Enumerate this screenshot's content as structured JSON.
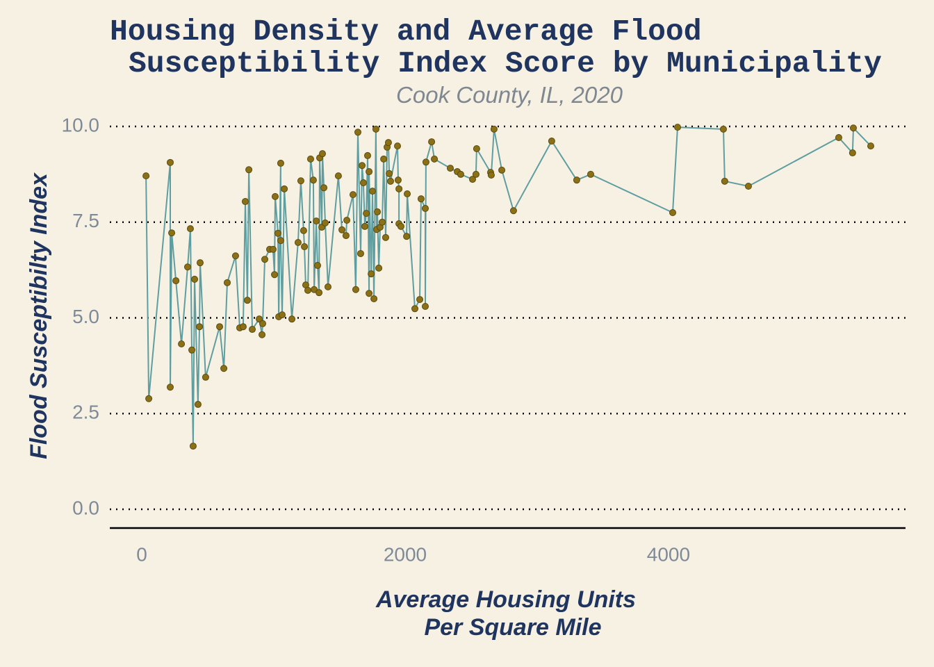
{
  "chart_data": {
    "type": "line",
    "title": [
      "Housing Density and Average Flood",
      "Susceptibility Index Score by Municipality"
    ],
    "subtitle": "Cook County, IL, 2020",
    "x_label": [
      "Average Housing Units",
      "Per Square Mile"
    ],
    "y_label": "Flood Susceptibilty Index",
    "line_color": "#5f9ea0",
    "marker_color": "#8b7016",
    "grid": true,
    "xlim": [
      -243,
      5800
    ],
    "ylim": [
      -0.49,
      10.4
    ],
    "xticks": [
      0,
      2000,
      4000
    ],
    "yticks": [
      {
        "value": 0,
        "label": "0.0"
      },
      {
        "value": 2.5,
        "label": "2.5"
      },
      {
        "value": 5,
        "label": "5.0"
      },
      {
        "value": 7.5,
        "label": "7.5"
      },
      {
        "value": 10,
        "label": "10.0"
      }
    ],
    "x": [
      32,
      53,
      216,
      216,
      227,
      259,
      301,
      348,
      369,
      380,
      390,
      401,
      427,
      438,
      443,
      485,
      591,
      623,
      649,
      712,
      744,
      770,
      786,
      802,
      813,
      839,
      892,
      913,
      918,
      934,
      971,
      997,
      1008,
      1013,
      1034,
      1040,
      1055,
      1055,
      1066,
      1082,
      1140,
      1187,
      1208,
      1229,
      1235,
      1245,
      1261,
      1282,
      1303,
      1309,
      1325,
      1335,
      1346,
      1351,
      1367,
      1372,
      1383,
      1393,
      1414,
      1493,
      1520,
      1551,
      1557,
      1604,
      1625,
      1641,
      1662,
      1673,
      1683,
      1694,
      1705,
      1715,
      1726,
      1726,
      1742,
      1752,
      1763,
      1778,
      1784,
      1789,
      1800,
      1810,
      1826,
      1837,
      1852,
      1863,
      1873,
      1879,
      1889,
      1942,
      1947,
      1953,
      1953,
      1968,
      2011,
      2016,
      2074,
      2111,
      2121,
      2153,
      2153,
      2158,
      2201,
      2222,
      2343,
      2396,
      2422,
      2512,
      2538,
      2543,
      2649,
      2654,
      2675,
      2734,
      2823,
      3113,
      3303,
      3409,
      4032,
      4069,
      4417,
      4427,
      4607,
      5293,
      5398,
      5404,
      5536
    ],
    "values": [
      8.71,
      2.89,
      9.06,
      3.19,
      7.22,
      5.97,
      4.32,
      6.33,
      7.33,
      4.16,
      1.65,
      6.01,
      2.74,
      4.77,
      6.44,
      3.45,
      4.77,
      3.68,
      5.92,
      6.62,
      4.74,
      4.77,
      8.04,
      5.46,
      8.87,
      4.7,
      4.97,
      4.56,
      4.85,
      6.53,
      6.79,
      6.79,
      6.13,
      8.17,
      7.21,
      5.03,
      9.04,
      7.02,
      5.08,
      8.37,
      4.97,
      6.97,
      8.58,
      7.28,
      6.86,
      5.86,
      5.72,
      9.15,
      8.6,
      5.74,
      7.53,
      6.37,
      5.66,
      9.18,
      7.37,
      9.29,
      8.4,
      7.48,
      5.81,
      8.71,
      7.3,
      7.15,
      7.55,
      8.22,
      5.74,
      9.85,
      6.68,
      8.98,
      8.53,
      7.39,
      7.73,
      9.24,
      5.64,
      8.82,
      6.15,
      8.31,
      5.5,
      9.93,
      7.31,
      7.77,
      6.3,
      7.37,
      7.5,
      9.15,
      7.1,
      9.46,
      9.58,
      8.77,
      8.57,
      9.49,
      8.6,
      8.37,
      7.46,
      7.39,
      7.13,
      8.24,
      5.24,
      5.48,
      8.11,
      7.86,
      5.3,
      9.07,
      9.6,
      9.15,
      8.91,
      8.82,
      8.75,
      8.62,
      8.75,
      9.42,
      8.8,
      8.73,
      9.93,
      8.86,
      7.8,
      9.62,
      8.6,
      8.75,
      7.75,
      9.98,
      9.93,
      8.57,
      8.44,
      9.71,
      9.31,
      9.96,
      9.49
    ]
  }
}
